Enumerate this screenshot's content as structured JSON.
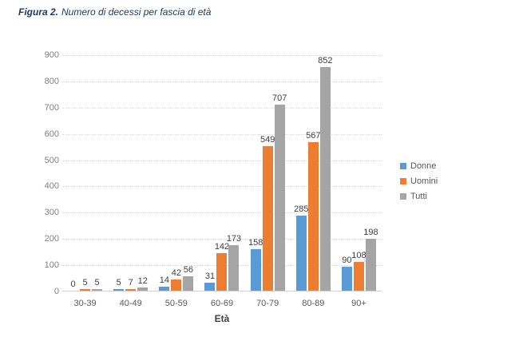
{
  "title": {
    "prefix": "Figura 2.",
    "text": "Numero di decessi per fascia di età"
  },
  "chart_data": {
    "type": "bar",
    "title": "Figura 2. Numero di decessi per fascia di età",
    "categories": [
      "30-39",
      "40-49",
      "50-59",
      "60-69",
      "70-79",
      "80-89",
      "90+"
    ],
    "series": [
      {
        "name": "Donne",
        "color": "#5B9BD5",
        "values": [
          0,
          5,
          14,
          31,
          158,
          285,
          90
        ]
      },
      {
        "name": "Uomini",
        "color": "#ED7D31",
        "values": [
          5,
          7,
          42,
          142,
          549,
          567,
          108
        ]
      },
      {
        "name": "Tutti",
        "color": "#A5A5A5",
        "values": [
          5,
          12,
          56,
          173,
          707,
          852,
          198
        ]
      }
    ],
    "xlabel": "Età",
    "ylabel": "",
    "ylim": [
      0,
      900
    ],
    "ytick_step": 100,
    "grid": true,
    "legend_position": "right",
    "data_labels": true
  },
  "colors": {
    "title_text": "#1F3864",
    "axis_labels": "#808080",
    "category_labels": "#595959",
    "data_labels": "#404040",
    "gridline": "#DADADA"
  }
}
